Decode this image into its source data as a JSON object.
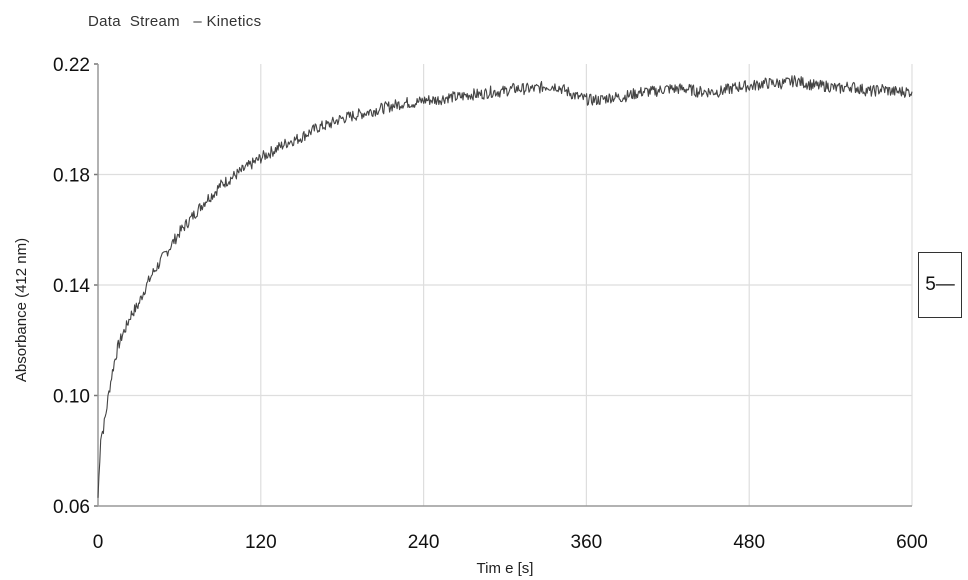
{
  "window": {
    "title": "Data  Stream   – Kinetics"
  },
  "legend": {
    "label": "5—"
  },
  "chart_data": {
    "type": "line",
    "title": "",
    "xlabel": "Tim e  [s]",
    "ylabel": "Absorbance  (412 nm)",
    "xlim": [
      0,
      600
    ],
    "ylim": [
      0.06,
      0.22
    ],
    "xticks": [
      "0",
      "120",
      "240",
      "360",
      "480",
      "600"
    ],
    "yticks": [
      "0.22",
      "0.18",
      "0.14",
      "0.10",
      "0.06"
    ],
    "grid": true,
    "series": [
      {
        "name": "5",
        "color": "#444444",
        "x": [
          0,
          2,
          4,
          6,
          8,
          10,
          12,
          15,
          18,
          21,
          24,
          27,
          30,
          33,
          36,
          40,
          44,
          48,
          52,
          56,
          60,
          65,
          70,
          75,
          80,
          85,
          90,
          96,
          102,
          108,
          114,
          120,
          127,
          134,
          141,
          148,
          155,
          162,
          170,
          178,
          186,
          194,
          202,
          210,
          218,
          226,
          234,
          242,
          250,
          258,
          266,
          274,
          282,
          290,
          298,
          306,
          314,
          322,
          330,
          338,
          346,
          354,
          362,
          370,
          378,
          386,
          394,
          402,
          410,
          418,
          426,
          434,
          442,
          450,
          458,
          466,
          474,
          482,
          490,
          498,
          506,
          514,
          522,
          530,
          538,
          546,
          554,
          562,
          570,
          578,
          586,
          594,
          600
        ],
        "y": [
          0.063,
          0.085,
          0.088,
          0.094,
          0.101,
          0.107,
          0.112,
          0.118,
          0.122,
          0.125,
          0.129,
          0.131,
          0.133,
          0.137,
          0.14,
          0.144,
          0.147,
          0.15,
          0.153,
          0.156,
          0.159,
          0.162,
          0.165,
          0.168,
          0.171,
          0.173,
          0.176,
          0.178,
          0.18,
          0.182,
          0.184,
          0.186,
          0.188,
          0.19,
          0.192,
          0.193,
          0.195,
          0.197,
          0.198,
          0.2,
          0.201,
          0.202,
          0.203,
          0.204,
          0.205,
          0.206,
          0.206,
          0.207,
          0.207,
          0.208,
          0.208,
          0.209,
          0.209,
          0.21,
          0.21,
          0.211,
          0.211,
          0.211,
          0.212,
          0.212,
          0.21,
          0.208,
          0.207,
          0.207,
          0.208,
          0.208,
          0.209,
          0.21,
          0.21,
          0.211,
          0.211,
          0.211,
          0.21,
          0.21,
          0.21,
          0.211,
          0.212,
          0.212,
          0.213,
          0.213,
          0.213,
          0.214,
          0.213,
          0.212,
          0.212,
          0.211,
          0.212,
          0.211,
          0.21,
          0.211,
          0.21,
          0.21,
          0.21
        ]
      }
    ]
  }
}
